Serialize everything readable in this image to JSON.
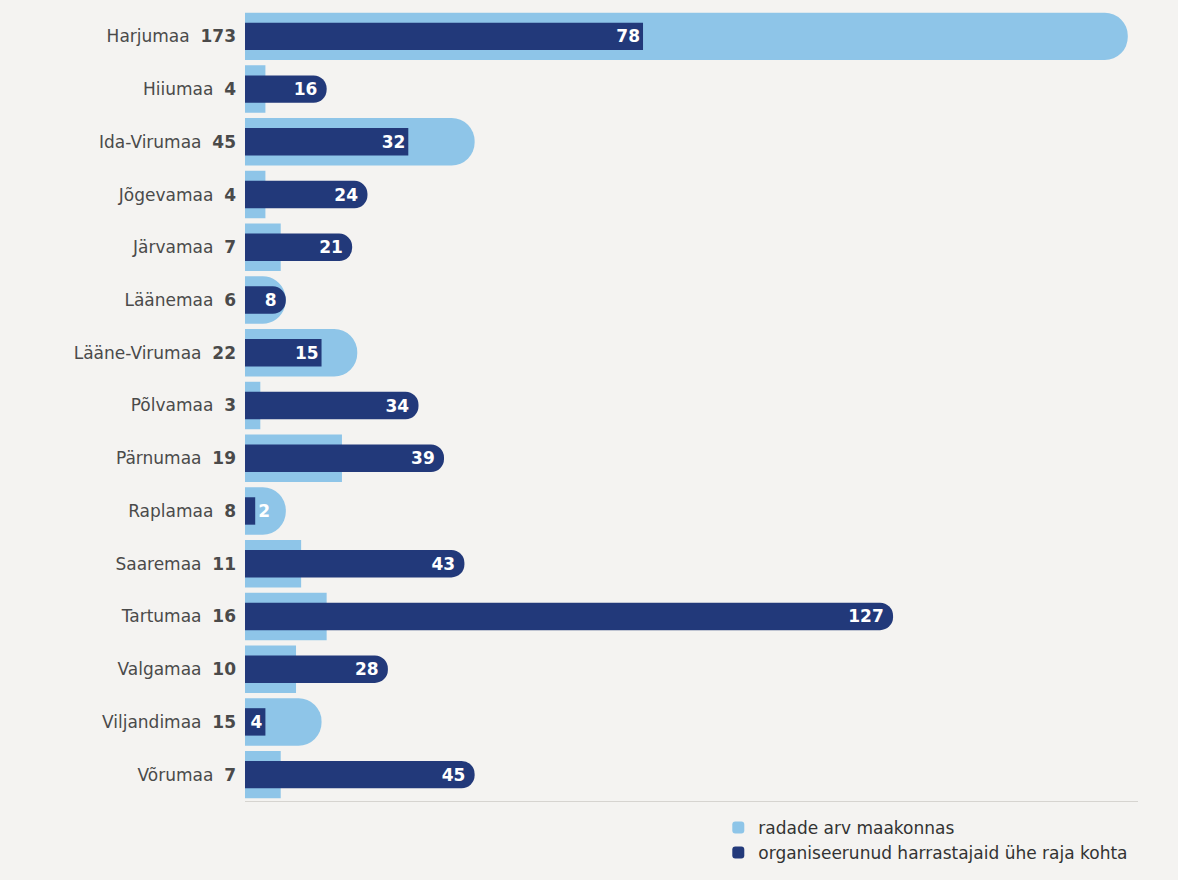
{
  "chart_data": {
    "type": "bar",
    "orientation": "horizontal",
    "categories": [
      "Harjumaa",
      "Hiiumaa",
      "Ida-Virumaa",
      "Jõgevamaa",
      "Järvamaa",
      "Läänemaa",
      "Lääne-Virumaa",
      "Põlvamaa",
      "Pärnumaa",
      "Raplamaa",
      "Saaremaa",
      "Tartumaa",
      "Valgamaa",
      "Viljandimaa",
      "Võrumaa"
    ],
    "series": [
      {
        "name": "radade arv maakonnas",
        "color": "#8ec5e8",
        "values": [
          173,
          4,
          45,
          4,
          7,
          6,
          22,
          3,
          19,
          8,
          11,
          16,
          10,
          15,
          7
        ]
      },
      {
        "name": "organiseerunud harrastajaid ühe raja kohta",
        "color": "#22397a",
        "values": [
          78,
          16,
          32,
          24,
          21,
          8,
          15,
          34,
          39,
          2,
          43,
          127,
          28,
          4,
          45
        ]
      }
    ],
    "xlim": [
      0,
      175
    ],
    "xticks": [],
    "tick_labels": "y",
    "data_labels": true,
    "grid": false,
    "stacked": false,
    "legend": "bottom right"
  }
}
